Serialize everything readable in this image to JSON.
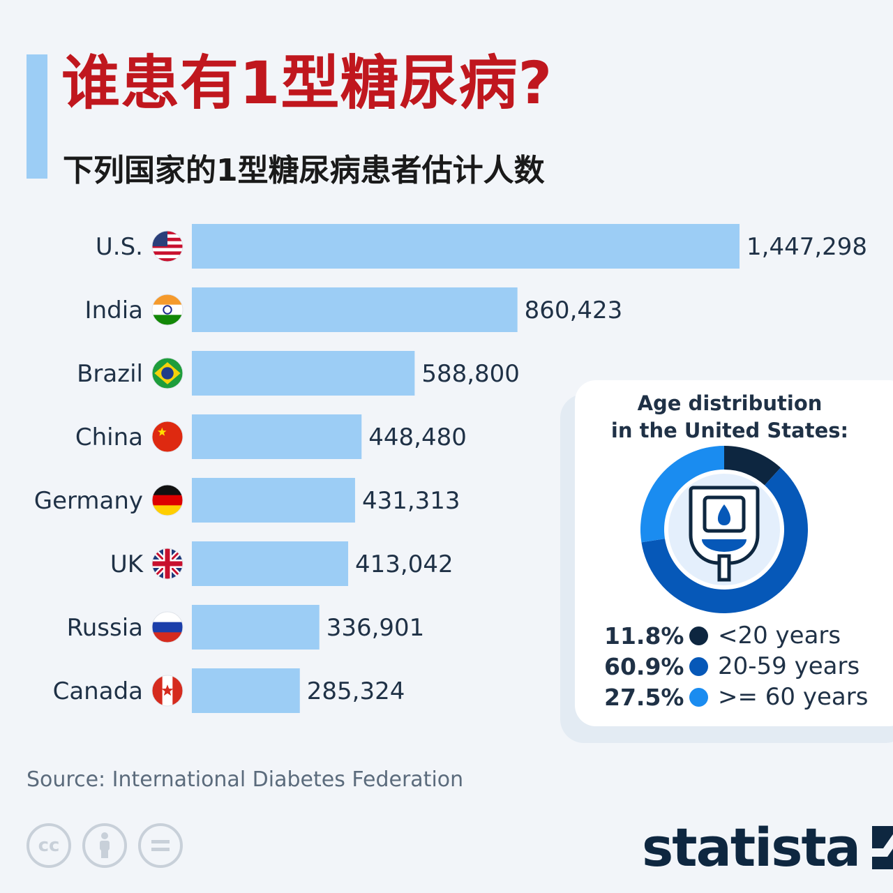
{
  "title": "谁患有1型糖尿病?",
  "subtitle": "下列国家的1型糖尿病患者估计人数",
  "colors": {
    "title": "#c0171e",
    "bar": "#9ccdf5",
    "accent": "#9ccdf5",
    "text": "#1f3146"
  },
  "chart_data": [
    {
      "type": "bar",
      "orientation": "horizontal",
      "categories": [
        "U.S.",
        "India",
        "Brazil",
        "China",
        "Germany",
        "UK",
        "Russia",
        "Canada"
      ],
      "flags": [
        "us-flag-icon",
        "india-flag-icon",
        "brazil-flag-icon",
        "china-flag-icon",
        "germany-flag-icon",
        "uk-flag-icon",
        "russia-flag-icon",
        "canada-flag-icon"
      ],
      "values": [
        1447298,
        860423,
        588800,
        448480,
        431313,
        413042,
        336901,
        285324
      ],
      "value_labels": [
        "1,447,298",
        "860,423",
        "588,800",
        "448,480",
        "431,313",
        "413,042",
        "336,901",
        "285,324"
      ],
      "grid": false
    },
    {
      "type": "pie",
      "title": "Age distribution in the United States:",
      "title_lines": [
        "Age distribution",
        "in the United States:"
      ],
      "center_icon": "glucose-meter-icon",
      "slices": [
        {
          "label": "<20 years",
          "value": 11.8,
          "pct": "11.8%",
          "color": "#0d2640"
        },
        {
          "label": "20-59 years",
          "value": 60.9,
          "pct": "60.9%",
          "color": "#0658b8"
        },
        {
          "label": ">= 60 years",
          "value": 27.5,
          "pct": "27.5%",
          "color": "#1a8cf0"
        }
      ]
    }
  ],
  "source": "Source: International Diabetes Federation",
  "license_icons": [
    "cc-icon",
    "attribution-icon",
    "no-derivatives-icon"
  ],
  "brand": "statista"
}
